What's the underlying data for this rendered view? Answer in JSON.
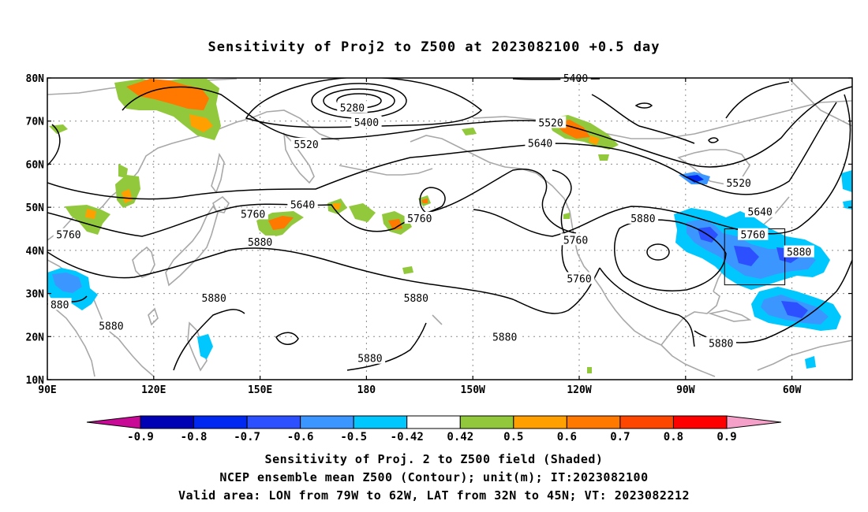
{
  "title": "Sensitivity of Proj2 to Z500 at 2023082100 +0.5 day",
  "map": {
    "lat_ticks": [
      "80N",
      "70N",
      "60N",
      "50N",
      "40N",
      "30N",
      "20N",
      "10N"
    ],
    "lon_ticks": [
      "90E",
      "120E",
      "150E",
      "180",
      "150W",
      "120W",
      "90W",
      "60W"
    ],
    "contour_labels": [
      {
        "text": "5400",
        "lon": -121,
        "lat": 79.8
      },
      {
        "text": "5280",
        "lon": 176,
        "lat": 73
      },
      {
        "text": "5400",
        "lon": 180,
        "lat": 69.6
      },
      {
        "text": "5520",
        "lon": -128,
        "lat": 69.5
      },
      {
        "text": "5520",
        "lon": 163,
        "lat": 64.5
      },
      {
        "text": "5640",
        "lon": -131,
        "lat": 64.7
      },
      {
        "text": "5640",
        "lon": 162,
        "lat": 50.5
      },
      {
        "text": "5760",
        "lon": 148,
        "lat": 48.3
      },
      {
        "text": "5760",
        "lon": 96,
        "lat": 43.5
      },
      {
        "text": "5760",
        "lon": -165,
        "lat": 47.3
      },
      {
        "text": "5760",
        "lon": -121,
        "lat": 42.3
      },
      {
        "text": "5760",
        "lon": -120,
        "lat": 33.3
      },
      {
        "text": "5880",
        "lon": -102,
        "lat": 47.3
      },
      {
        "text": "5880",
        "lon": 150,
        "lat": 41.8
      },
      {
        "text": "5880",
        "lon": -58,
        "lat": 39.5
      },
      {
        "text": "5520",
        "lon": -75,
        "lat": 55.5
      },
      {
        "text": "5640",
        "lon": -69,
        "lat": 48.8
      },
      {
        "text": "5760",
        "lon": -71,
        "lat": 43.5
      },
      {
        "text": "5880",
        "lon": 137,
        "lat": 28.8
      },
      {
        "text": "5880",
        "lon": 108,
        "lat": 22.3
      },
      {
        "text": "880",
        "lon": 93.5,
        "lat": 27.3
      },
      {
        "text": "5880",
        "lon": -166,
        "lat": 28.8
      },
      {
        "text": "5880",
        "lon": -141,
        "lat": 19.8
      },
      {
        "text": "5880",
        "lon": -179,
        "lat": 14.8
      },
      {
        "text": "5880",
        "lon": -80,
        "lat": 18.3
      }
    ],
    "shading_levels": [
      0.42,
      0.5,
      0.6,
      0.7,
      0.8,
      0.9
    ],
    "validation_box": {
      "lon_min": -79,
      "lon_max": -62,
      "lat_min": 32,
      "lat_max": 45
    }
  },
  "colorbar": {
    "labels": [
      "-0.9",
      "-0.8",
      "-0.7",
      "-0.6",
      "-0.5",
      "-0.42",
      "0.42",
      "0.5",
      "0.6",
      "0.7",
      "0.8",
      "0.9"
    ],
    "colors": [
      "#0000b4",
      "#0028f0",
      "#2c50ff",
      "#3c96ff",
      "#00c8ff",
      "#ffffff",
      "#92c83c",
      "#ffa000",
      "#ff7800",
      "#ff4600",
      "#ff0000"
    ],
    "low_end_color": "#c80a96",
    "high_end_color": "#f5a0c8"
  },
  "footer": {
    "line1": "Sensitivity of Proj. 2 to Z500 field (Shaded)",
    "line2": "NCEP ensemble mean Z500 (Contour); unit(m); IT:2023082100",
    "line3": "Valid area: LON from 79W to 62W, LAT from 32N to 45N; VT: 2023082212"
  }
}
